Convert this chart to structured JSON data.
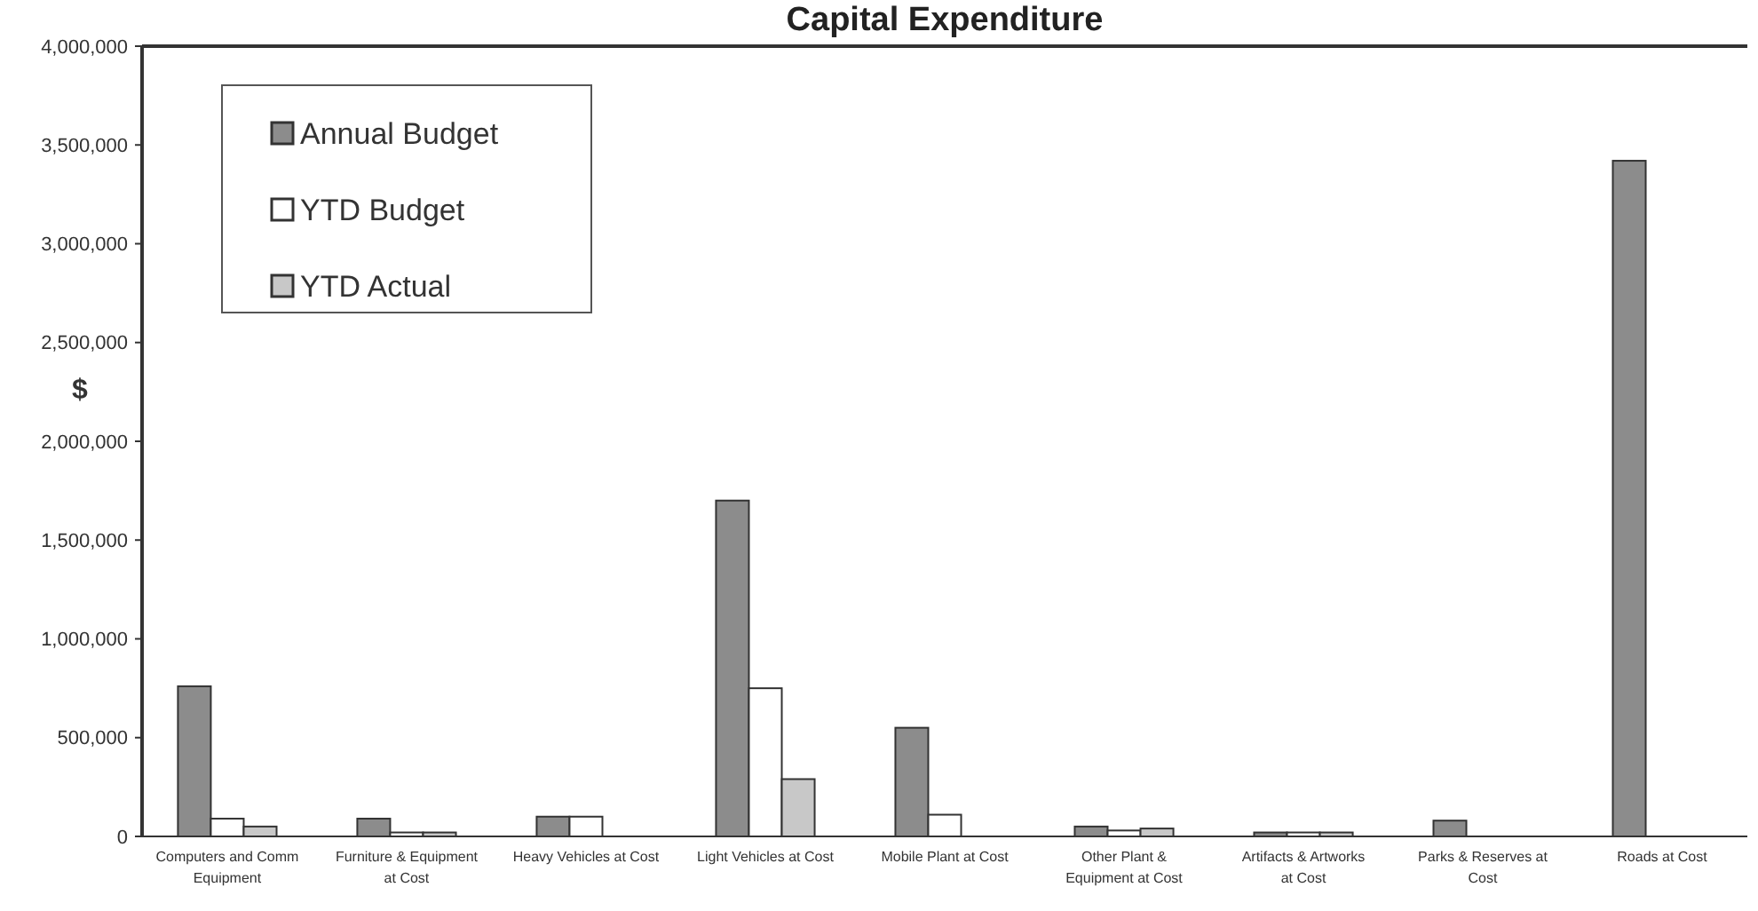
{
  "chart_data": {
    "type": "bar",
    "title": "Capital Expenditure",
    "ylabel": "$",
    "categories": [
      "Computers and Comm Equipment",
      "Furniture & Equipment at Cost",
      "Heavy Vehicles at Cost",
      "Light Vehicles at Cost",
      "Mobile Plant at Cost",
      "Other Plant & Equipment at Cost",
      "Artifacts & Artworks at Cost",
      "Parks & Reserves at Cost",
      "Roads at Cost"
    ],
    "series": [
      {
        "name": "Annual Budget",
        "color": "#8c8c8c",
        "values": [
          760000,
          90000,
          100000,
          1700000,
          550000,
          50000,
          20000,
          80000,
          3420000
        ]
      },
      {
        "name": "YTD Budget",
        "color": "#ffffff",
        "values": [
          90000,
          20000,
          100000,
          750000,
          110000,
          30000,
          20000,
          0,
          0
        ]
      },
      {
        "name": "YTD Actual",
        "color": "#c8c8c8",
        "values": [
          50000,
          20000,
          0,
          290000,
          0,
          40000,
          20000,
          0,
          0
        ]
      }
    ],
    "ylim": [
      0,
      4000000
    ],
    "yticks": [
      {
        "value": 0,
        "label": "0"
      },
      {
        "value": 500000,
        "label": "500,000"
      },
      {
        "value": 1000000,
        "label": "1,000,000"
      },
      {
        "value": 1500000,
        "label": "1,500,000"
      },
      {
        "value": 2000000,
        "label": "2,000,000"
      },
      {
        "value": 2500000,
        "label": "2,500,000"
      },
      {
        "value": 3000000,
        "label": "3,000,000"
      },
      {
        "value": 3500000,
        "label": "3,500,000"
      },
      {
        "value": 4000000,
        "label": "4,000,000"
      }
    ],
    "grid": false,
    "legend": "top left"
  }
}
